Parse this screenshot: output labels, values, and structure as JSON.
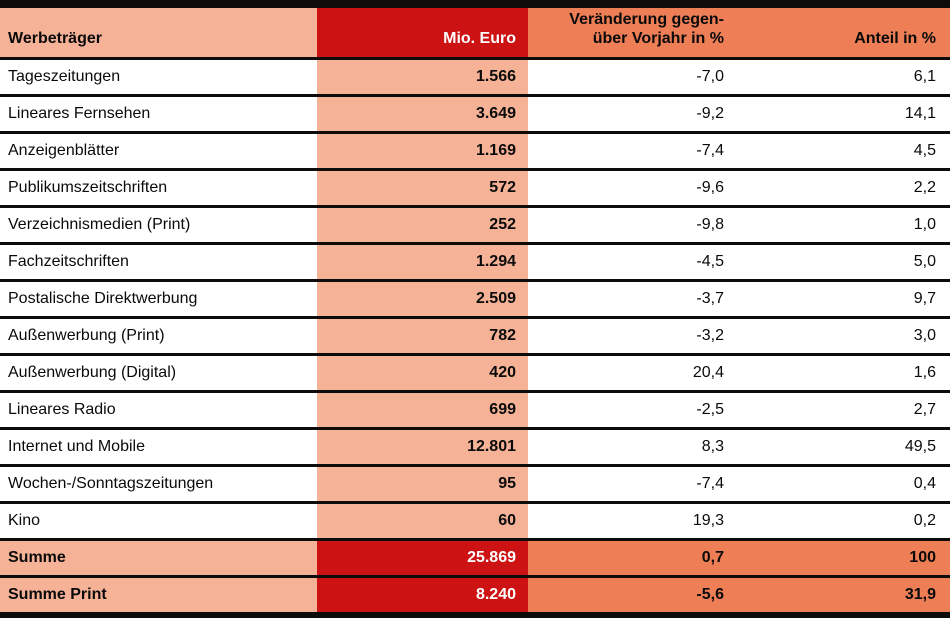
{
  "colors": {
    "salmon": "#f5b296",
    "orange": "#ed7e55",
    "red": "#cc1212",
    "line": "#0d0c0a"
  },
  "chart_data": {
    "type": "table",
    "columns": [
      "Werbeträger",
      "Mio. Euro",
      "Veränderung gegen-\nüber Vorjahr in %",
      "Anteil in %"
    ],
    "rows": [
      {
        "label": "Tageszeitungen",
        "mio_euro": "1.566",
        "change_pct": "-7,0",
        "share_pct": "6,1"
      },
      {
        "label": "Lineares Fernsehen",
        "mio_euro": "3.649",
        "change_pct": "-9,2",
        "share_pct": "14,1"
      },
      {
        "label": "Anzeigenblätter",
        "mio_euro": "1.169",
        "change_pct": "-7,4",
        "share_pct": "4,5"
      },
      {
        "label": "Publikumszeitschriften",
        "mio_euro": "572",
        "change_pct": "-9,6",
        "share_pct": "2,2"
      },
      {
        "label": "Verzeichnismedien (Print)",
        "mio_euro": "252",
        "change_pct": "-9,8",
        "share_pct": "1,0"
      },
      {
        "label": "Fachzeitschriften",
        "mio_euro": "1.294",
        "change_pct": "-4,5",
        "share_pct": "5,0"
      },
      {
        "label": "Postalische Direktwerbung",
        "mio_euro": "2.509",
        "change_pct": "-3,7",
        "share_pct": "9,7"
      },
      {
        "label": "Außenwerbung (Print)",
        "mio_euro": "782",
        "change_pct": "-3,2",
        "share_pct": "3,0"
      },
      {
        "label": "Außenwerbung (Digital)",
        "mio_euro": "420",
        "change_pct": "20,4",
        "share_pct": "1,6"
      },
      {
        "label": "Lineares Radio",
        "mio_euro": "699",
        "change_pct": "-2,5",
        "share_pct": "2,7"
      },
      {
        "label": "Internet und Mobile",
        "mio_euro": "12.801",
        "change_pct": "8,3",
        "share_pct": "49,5"
      },
      {
        "label": "Wochen-/Sonntagszeitungen",
        "mio_euro": "95",
        "change_pct": "-7,4",
        "share_pct": "0,4"
      },
      {
        "label": "Kino",
        "mio_euro": "60",
        "change_pct": "19,3",
        "share_pct": "0,2"
      }
    ],
    "summary_rows": [
      {
        "label": "Summe",
        "mio_euro": "25.869",
        "change_pct": "0,7",
        "share_pct": "100"
      },
      {
        "label": "Summe Print",
        "mio_euro": "8.240",
        "change_pct": "-5,6",
        "share_pct": "31,9"
      }
    ]
  }
}
